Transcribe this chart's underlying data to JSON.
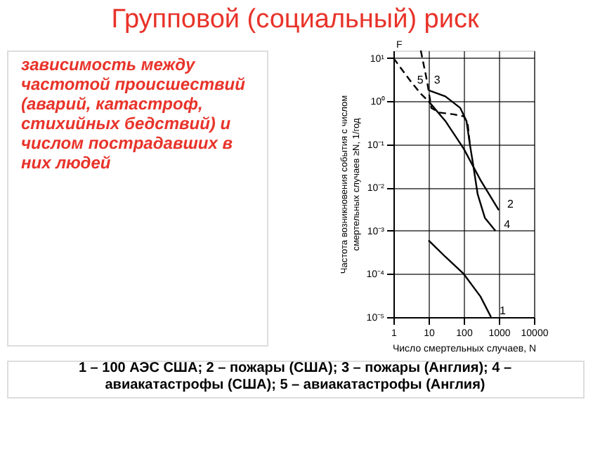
{
  "chart_data": {
    "type": "line",
    "title": "Групповой (социальный) риск",
    "xlabel": "Число смертельных случаев, N",
    "ylabel": "Частота возникновения события с числом смертельных случаев ≥N, 1/год",
    "annotations": [
      "зависимость между частотой происшествий (аварий, катастроф, стихийных бедствий) и числом пострадавших в них людей",
      "1 – 100 АЭС США; 2 – пожары (США); 3 – пожары (Англия); 4 – авиакатастрофы (США); 5 – авиакатастрофы (Англия)",
      "F"
    ],
    "log": "xy",
    "grid": true,
    "legend": false,
    "marker": "none",
    "xlim": [
      1,
      10000
    ],
    "xticks": [
      1,
      10,
      100,
      1000,
      10000
    ],
    "ylim": [
      1e-05,
      15
    ],
    "yticks": [
      {
        "value": 1e-05,
        "label": "10⁻⁵"
      },
      {
        "value": 0.0001,
        "label": "10⁻⁴"
      },
      {
        "value": 0.001,
        "label": "10⁻³"
      },
      {
        "value": 0.01,
        "label": "10⁻²"
      },
      {
        "value": 0.1,
        "label": "10⁻¹"
      },
      {
        "value": 1,
        "label": "10⁰"
      },
      {
        "value": 10,
        "label": "10¹"
      }
    ],
    "series": [
      {
        "name": "1",
        "color": "#000000",
        "line_style": "solid",
        "x": [
          10,
          30,
          100,
          300,
          600
        ],
        "values": [
          0.0006,
          0.00025,
          0.0001,
          3e-05,
          1e-05
        ]
      },
      {
        "name": "2",
        "color": "#000000",
        "line_style": "solid",
        "x": [
          10,
          30,
          100,
          300,
          1000
        ],
        "values": [
          1,
          0.35,
          0.08,
          0.015,
          0.003
        ]
      },
      {
        "name": "3",
        "color": "#000000",
        "line_style": "dashed",
        "x": [
          6,
          9,
          12,
          20,
          50,
          100,
          130,
          150
        ],
        "values": [
          15,
          3,
          0.7,
          0.55,
          0.5,
          0.45,
          0.3,
          0.1
        ]
      },
      {
        "name": "4",
        "color": "#000000",
        "line_style": "solid",
        "x": [
          10,
          30,
          80,
          120,
          150,
          180,
          250,
          400,
          800
        ],
        "values": [
          1.8,
          1.3,
          0.7,
          0.35,
          0.1,
          0.04,
          0.007,
          0.002,
          0.001
        ]
      },
      {
        "name": "5",
        "color": "#000000",
        "line_style": "dashed",
        "x": [
          1,
          3,
          6,
          10
        ],
        "values": [
          10,
          3,
          1.5,
          1
        ]
      }
    ]
  }
}
